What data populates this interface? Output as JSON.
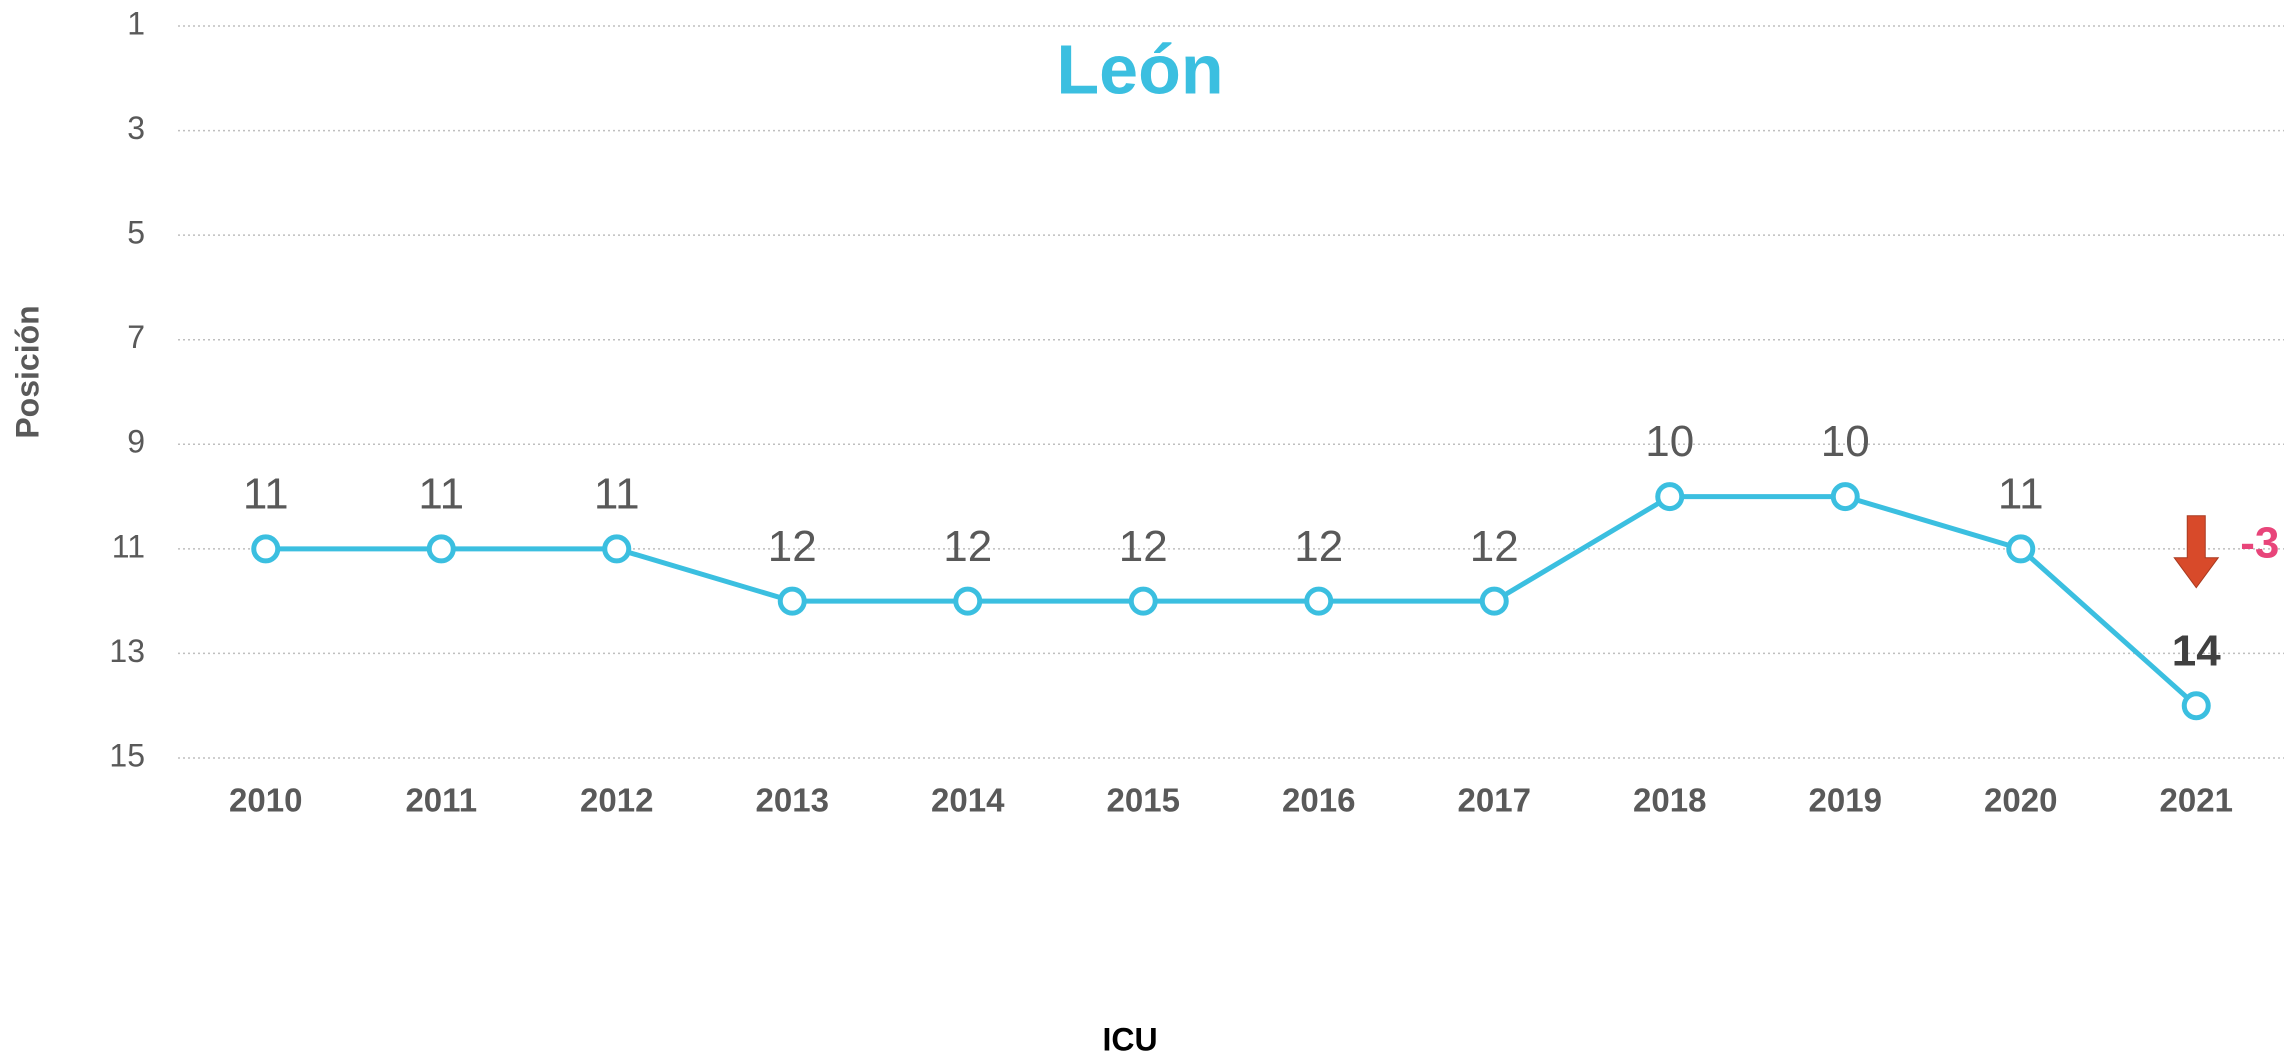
{
  "chart_data": {
    "type": "line",
    "title": "León",
    "y_label": "Posición",
    "x_label": "ICU",
    "categories": [
      "2010",
      "2011",
      "2012",
      "2013",
      "2014",
      "2015",
      "2016",
      "2017",
      "2018",
      "2019",
      "2020",
      "2021"
    ],
    "values": [
      11,
      11,
      11,
      12,
      12,
      12,
      12,
      12,
      10,
      10,
      11,
      14
    ],
    "color": "#3bbfe0",
    "ylim": [
      1,
      15
    ],
    "yticks": [
      1,
      3,
      5,
      7,
      9,
      11,
      13,
      15
    ],
    "y_inverted": true,
    "grid": true,
    "annotation": "-3"
  }
}
